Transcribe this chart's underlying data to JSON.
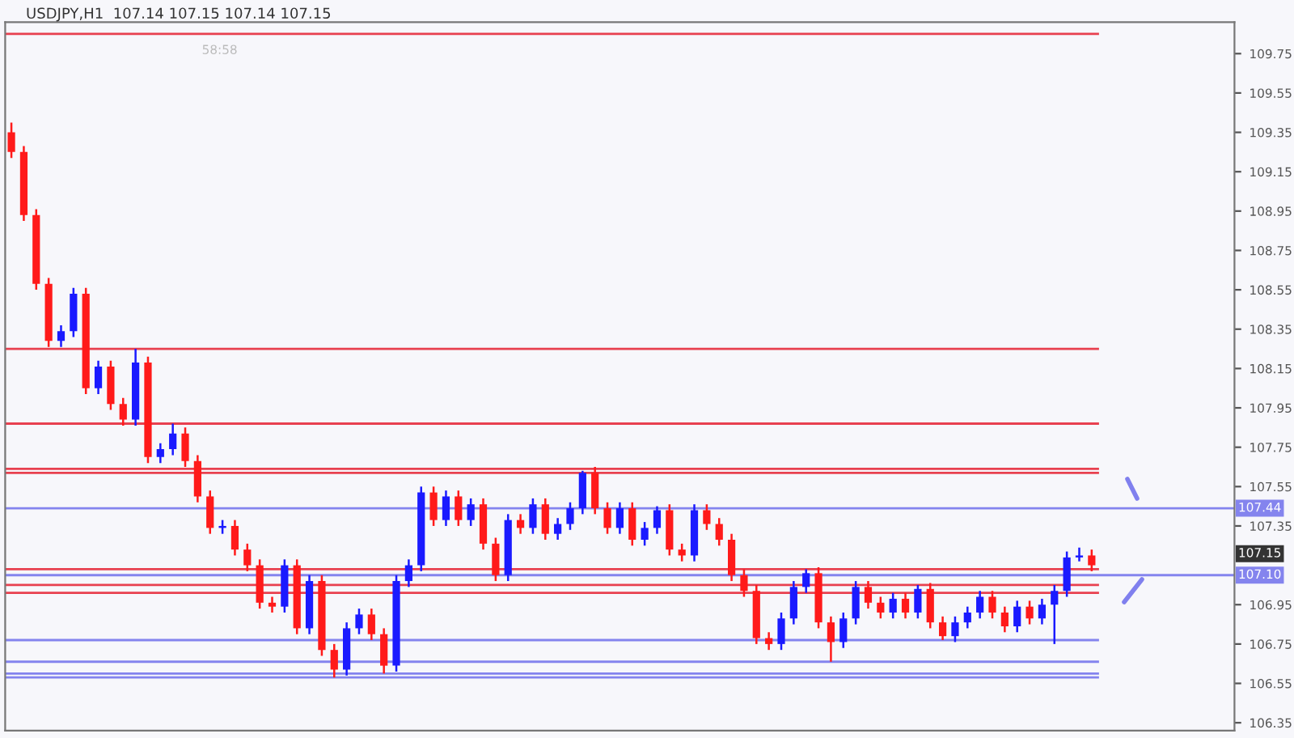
{
  "chart_data": {
    "type": "candlestick",
    "title": "USDJPY,H1  107.14 107.15 107.14 107.15",
    "annotations": [
      "58:58",
      "107.15"
    ],
    "categories": [
      null,
      null,
      null,
      null,
      null,
      null,
      null,
      null,
      null,
      null,
      null,
      null,
      null,
      null,
      null,
      null,
      null,
      null,
      null,
      null,
      null,
      null,
      null,
      null,
      null,
      null,
      null,
      null,
      null,
      null,
      null,
      null,
      null,
      null,
      null,
      null,
      null,
      null,
      null,
      null,
      null,
      null,
      null,
      null,
      null,
      null,
      null,
      null,
      null,
      null,
      null,
      null,
      null,
      null,
      null,
      null,
      null,
      null,
      null,
      null,
      null,
      null,
      null,
      null,
      null,
      null,
      null,
      null,
      null,
      null,
      null,
      null,
      null,
      null,
      null,
      null,
      null,
      null,
      null,
      null,
      null,
      null,
      null,
      null,
      null,
      null,
      null,
      null,
      null,
      null,
      null,
      null,
      null,
      null,
      null,
      null,
      null,
      null,
      null
    ],
    "ohlc": [
      [
        109.35,
        109.4,
        109.22,
        109.25
      ],
      [
        109.25,
        109.28,
        108.9,
        108.93
      ],
      [
        108.93,
        108.96,
        108.55,
        108.58
      ],
      [
        108.58,
        108.61,
        108.26,
        108.29
      ],
      [
        108.29,
        108.37,
        108.26,
        108.34
      ],
      [
        108.34,
        108.56,
        108.31,
        108.53
      ],
      [
        108.53,
        108.56,
        108.02,
        108.05
      ],
      [
        108.05,
        108.19,
        108.02,
        108.16
      ],
      [
        108.16,
        108.19,
        107.94,
        107.97
      ],
      [
        107.97,
        108.0,
        107.86,
        107.89
      ],
      [
        107.89,
        108.25,
        107.86,
        108.18
      ],
      [
        108.18,
        108.21,
        107.67,
        107.7
      ],
      [
        107.7,
        107.77,
        107.67,
        107.74
      ],
      [
        107.74,
        107.87,
        107.71,
        107.82
      ],
      [
        107.82,
        107.85,
        107.65,
        107.68
      ],
      [
        107.68,
        107.71,
        107.47,
        107.5
      ],
      [
        107.5,
        107.53,
        107.31,
        107.34
      ],
      [
        107.34,
        107.38,
        107.31,
        107.35
      ],
      [
        107.35,
        107.38,
        107.2,
        107.23
      ],
      [
        107.23,
        107.26,
        107.12,
        107.15
      ],
      [
        107.15,
        107.18,
        106.93,
        106.96
      ],
      [
        106.96,
        106.99,
        106.91,
        106.94
      ],
      [
        106.94,
        107.18,
        106.91,
        107.15
      ],
      [
        107.15,
        107.18,
        106.8,
        106.83
      ],
      [
        106.83,
        107.1,
        106.8,
        107.07
      ],
      [
        107.07,
        107.1,
        106.69,
        106.72
      ],
      [
        106.72,
        106.75,
        106.58,
        106.62
      ],
      [
        106.62,
        106.86,
        106.59,
        106.83
      ],
      [
        106.83,
        106.93,
        106.8,
        106.9
      ],
      [
        106.9,
        106.93,
        106.77,
        106.8
      ],
      [
        106.8,
        106.83,
        106.6,
        106.64
      ],
      [
        106.64,
        107.1,
        106.61,
        107.07
      ],
      [
        107.07,
        107.18,
        107.04,
        107.15
      ],
      [
        107.15,
        107.55,
        107.12,
        107.52
      ],
      [
        107.52,
        107.55,
        107.35,
        107.38
      ],
      [
        107.38,
        107.53,
        107.35,
        107.5
      ],
      [
        107.5,
        107.53,
        107.35,
        107.38
      ],
      [
        107.38,
        107.49,
        107.35,
        107.46
      ],
      [
        107.46,
        107.49,
        107.23,
        107.26
      ],
      [
        107.26,
        107.29,
        107.07,
        107.1
      ],
      [
        107.1,
        107.41,
        107.07,
        107.38
      ],
      [
        107.38,
        107.41,
        107.31,
        107.34
      ],
      [
        107.34,
        107.49,
        107.31,
        107.46
      ],
      [
        107.46,
        107.49,
        107.28,
        107.31
      ],
      [
        107.31,
        107.39,
        107.28,
        107.36
      ],
      [
        107.36,
        107.47,
        107.33,
        107.44
      ],
      [
        107.44,
        107.63,
        107.41,
        107.62
      ],
      [
        107.62,
        107.65,
        107.41,
        107.44
      ],
      [
        107.44,
        107.47,
        107.31,
        107.34
      ],
      [
        107.34,
        107.47,
        107.31,
        107.44
      ],
      [
        107.44,
        107.47,
        107.25,
        107.28
      ],
      [
        107.28,
        107.37,
        107.25,
        107.34
      ],
      [
        107.34,
        107.45,
        107.31,
        107.43
      ],
      [
        107.43,
        107.46,
        107.2,
        107.23
      ],
      [
        107.23,
        107.26,
        107.17,
        107.2
      ],
      [
        107.2,
        107.46,
        107.17,
        107.43
      ],
      [
        107.43,
        107.46,
        107.33,
        107.36
      ],
      [
        107.36,
        107.39,
        107.25,
        107.28
      ],
      [
        107.28,
        107.31,
        107.07,
        107.1
      ],
      [
        107.1,
        107.13,
        106.99,
        107.02
      ],
      [
        107.02,
        107.05,
        106.75,
        106.78
      ],
      [
        106.78,
        106.81,
        106.72,
        106.75
      ],
      [
        106.75,
        106.91,
        106.72,
        106.88
      ],
      [
        106.88,
        107.07,
        106.85,
        107.04
      ],
      [
        107.04,
        107.13,
        107.01,
        107.11
      ],
      [
        107.11,
        107.14,
        106.83,
        106.86
      ],
      [
        106.86,
        106.89,
        106.66,
        106.76
      ],
      [
        106.76,
        106.91,
        106.73,
        106.88
      ],
      [
        106.88,
        107.07,
        106.85,
        107.04
      ],
      [
        107.04,
        107.07,
        106.93,
        106.96
      ],
      [
        106.96,
        106.99,
        106.88,
        106.91
      ],
      [
        106.91,
        107.01,
        106.88,
        106.98
      ],
      [
        106.98,
        107.01,
        106.88,
        106.91
      ],
      [
        106.91,
        107.05,
        106.88,
        107.03
      ],
      [
        107.03,
        107.06,
        106.83,
        106.86
      ],
      [
        106.86,
        106.89,
        106.77,
        106.79
      ],
      [
        106.79,
        106.89,
        106.76,
        106.86
      ],
      [
        106.86,
        106.94,
        106.83,
        106.91
      ],
      [
        106.91,
        107.02,
        106.88,
        106.99
      ],
      [
        106.99,
        107.02,
        106.88,
        106.91
      ],
      [
        106.91,
        106.94,
        106.81,
        106.84
      ],
      [
        106.84,
        106.97,
        106.81,
        106.94
      ],
      [
        106.94,
        106.97,
        106.85,
        106.88
      ],
      [
        106.88,
        106.98,
        106.85,
        106.95
      ],
      [
        106.95,
        107.05,
        106.75,
        107.02
      ],
      [
        107.02,
        107.22,
        106.99,
        107.19
      ],
      [
        107.19,
        107.24,
        107.17,
        107.2
      ],
      [
        107.2,
        107.23,
        107.12,
        107.15
      ],
      null,
      null,
      null,
      null,
      null,
      null,
      null,
      null,
      null,
      null,
      null
    ],
    "colors": [
      "#ff1a1a",
      "#ff1a1a",
      "#ff1a1a",
      "#ff1a1a",
      "#1a1aff",
      "#1a1aff",
      "#ff1a1a",
      "#1a1aff",
      "#ff1a1a",
      "#ff1a1a",
      "#1a1aff",
      "#ff1a1a",
      "#1a1aff",
      "#1a1aff",
      "#ff1a1a",
      "#ff1a1a",
      "#ff1a1a",
      "#1a1aff",
      "#ff1a1a",
      "#ff1a1a",
      "#ff1a1a",
      "#ff1a1a",
      "#1a1aff",
      "#ff1a1a",
      "#1a1aff",
      "#ff1a1a",
      "#ff1a1a",
      "#1a1aff",
      "#1a1aff",
      "#ff1a1a",
      "#ff1a1a",
      "#1a1aff",
      "#1a1aff",
      "#1a1aff",
      "#ff1a1a",
      "#1a1aff",
      "#ff1a1a",
      "#1a1aff",
      "#ff1a1a",
      "#ff1a1a",
      "#1a1aff",
      "#ff1a1a",
      "#1a1aff",
      "#ff1a1a",
      "#1a1aff",
      "#1a1aff",
      "#1a1aff",
      "#ff1a1a",
      "#ff1a1a",
      "#1a1aff",
      "#ff1a1a",
      "#1a1aff",
      "#1a1aff",
      "#ff1a1a",
      "#ff1a1a",
      "#1a1aff",
      "#ff1a1a",
      "#ff1a1a",
      "#ff1a1a",
      "#ff1a1a",
      "#ff1a1a",
      "#ff1a1a",
      "#1a1aff",
      "#1a1aff",
      "#1a1aff",
      "#ff1a1a",
      "#ff1a1a",
      "#1a1aff",
      "#1a1aff",
      "#ff1a1a",
      "#ff1a1a",
      "#1a1aff",
      "#ff1a1a",
      "#1a1aff",
      "#ff1a1a",
      "#ff1a1a",
      "#1a1aff",
      "#1a1aff",
      "#1a1aff",
      "#ff1a1a",
      "#ff1a1a",
      "#1a1aff",
      "#ff1a1a",
      "#1a1aff",
      "#1a1aff",
      "#1a1aff",
      "#1a1aff",
      "#ff1a1a",
      null,
      null,
      null,
      null,
      null,
      null,
      null,
      null,
      null,
      null,
      null
    ],
    "ref_lines": [
      {
        "axis": "y",
        "value": 109.85,
        "color": "#e8404f"
      },
      {
        "axis": "y",
        "value": 108.25,
        "color": "#e8404f"
      },
      {
        "axis": "y",
        "value": 107.87,
        "color": "#e8404f"
      },
      {
        "axis": "y",
        "value": 107.64,
        "color": "#e8404f"
      },
      {
        "axis": "y",
        "value": 107.62,
        "color": "#e8404f"
      },
      {
        "axis": "y",
        "value": 107.13,
        "color": "#e8404f"
      },
      {
        "axis": "y",
        "value": 107.05,
        "color": "#e8404f"
      },
      {
        "axis": "y",
        "value": 107.01,
        "color": "#e8404f"
      },
      {
        "axis": "y",
        "value": 106.77,
        "color": "#8484ee"
      },
      {
        "axis": "y",
        "value": 106.66,
        "color": "#8484ee"
      },
      {
        "axis": "y",
        "value": 106.6,
        "color": "#8484ee"
      },
      {
        "axis": "y",
        "value": 106.58,
        "color": "#8484ee"
      },
      {
        "axis": "y",
        "value": 107.44,
        "label": "107.44",
        "color": "#8484ee"
      },
      {
        "axis": "y",
        "value": 107.1,
        "label": "107.10",
        "color": "#8484ee"
      }
    ],
    "ylim": [
      106.31,
      109.91
    ],
    "yticks": [
      106.35,
      106.55,
      106.75,
      106.95,
      107.35,
      107.55,
      107.75,
      107.95,
      108.15,
      108.35,
      108.55,
      108.75,
      108.95,
      109.15,
      109.35,
      109.55,
      109.75
    ],
    "tick_labels": "y",
    "grid": false
  }
}
